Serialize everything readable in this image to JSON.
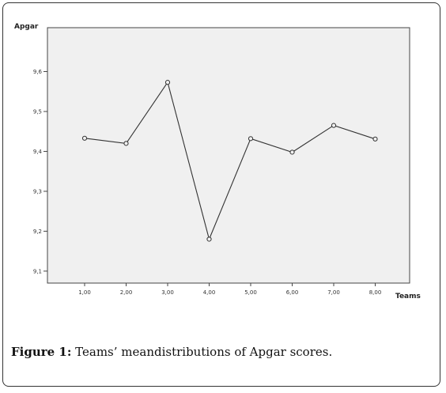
{
  "chart_data": {
    "type": "line",
    "xlabel": "Teams",
    "ylabel": "Apgar",
    "x": [
      "1,00",
      "2,00",
      "3,00",
      "4,00",
      "5,00",
      "6,00",
      "7,00",
      "8,00"
    ],
    "values": [
      9.433,
      9.42,
      9.573,
      9.18,
      9.432,
      9.398,
      9.465,
      9.431
    ],
    "y_ticks": [
      "9,1",
      "9,2",
      "9,3",
      "9,4",
      "9,5",
      "9,6"
    ],
    "y_tick_values": [
      9.1,
      9.2,
      9.3,
      9.4,
      9.5,
      9.6
    ],
    "ylim": [
      9.07,
      9.71
    ],
    "grid": false,
    "line_color": "#333333",
    "plot_background": "#f0f0f0"
  },
  "caption": {
    "label": "Figure 1:",
    "text": " Teams’ meandistributions of Apgar scores."
  }
}
